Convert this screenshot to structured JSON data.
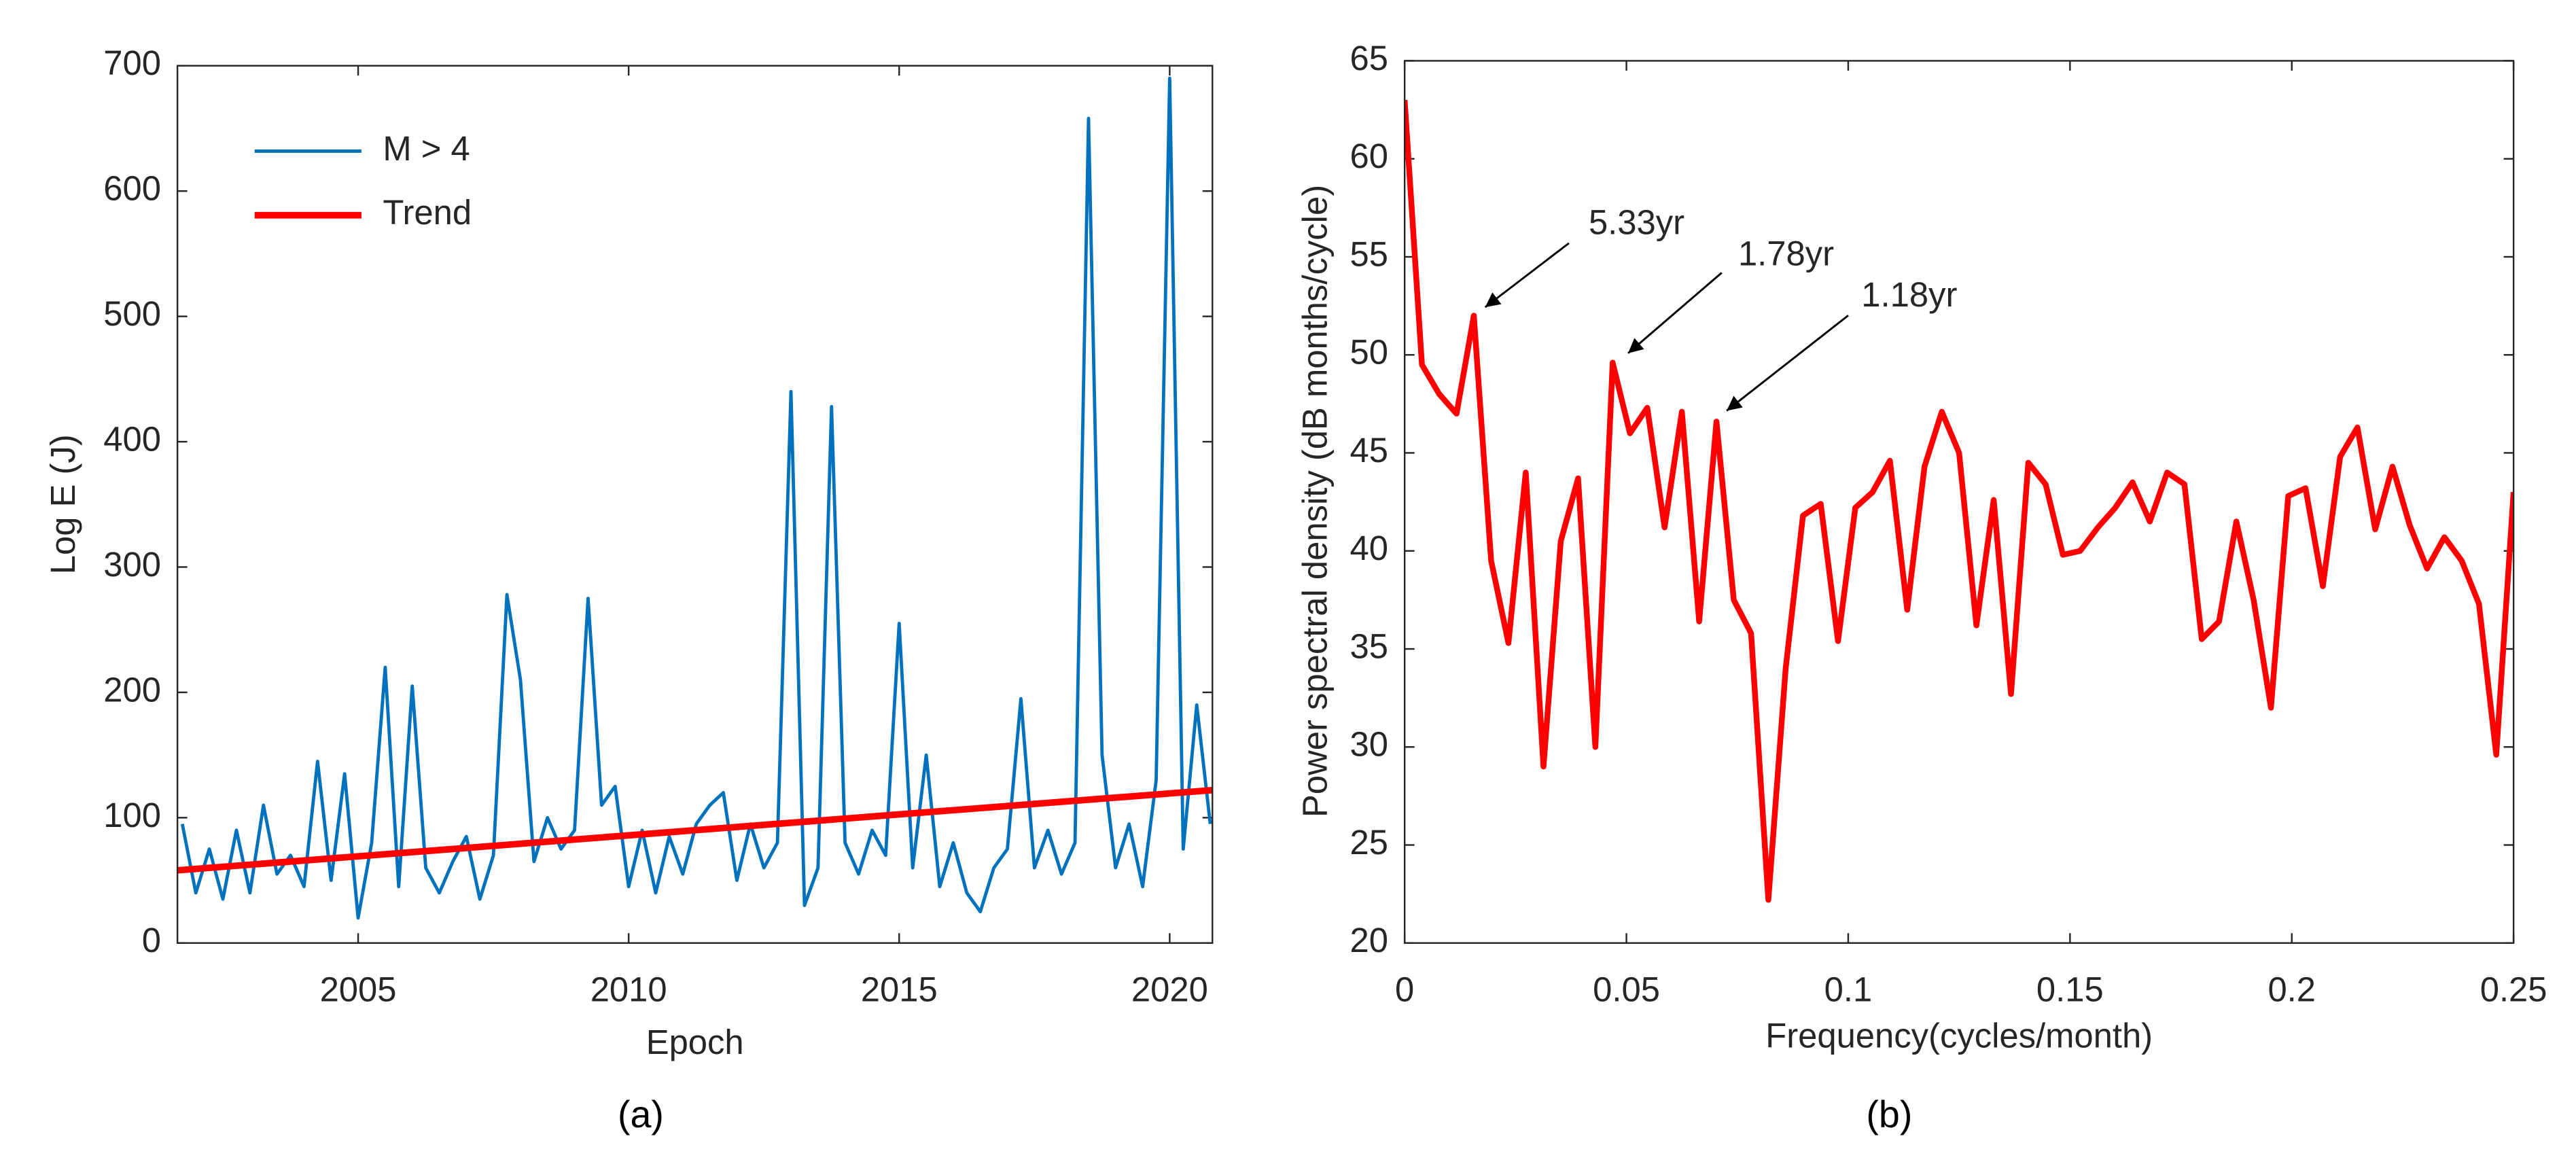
{
  "chart_data": [
    {
      "type": "line",
      "xlabel": "Epoch",
      "ylabel": "Log E (J)",
      "caption": "(a)",
      "xlim": [
        2001.66,
        2020.79
      ],
      "ylim": [
        0,
        700
      ],
      "xticks": [
        2005,
        2010,
        2015,
        2020
      ],
      "yticks": [
        0,
        100,
        200,
        300,
        400,
        500,
        600,
        700
      ],
      "legend": "upper left",
      "series": [
        {
          "name": "M > 4",
          "color": "#0072bd",
          "x": [
            2001.75,
            2002,
            2002.25,
            2002.5,
            2002.75,
            2003,
            2003.25,
            2003.5,
            2003.75,
            2004,
            2004.25,
            2004.5,
            2004.75,
            2005,
            2005.25,
            2005.5,
            2005.75,
            2006,
            2006.25,
            2006.5,
            2006.75,
            2007,
            2007.25,
            2007.5,
            2007.75,
            2008,
            2008.25,
            2008.5,
            2008.75,
            2009,
            2009.25,
            2009.5,
            2009.75,
            2010,
            2010.25,
            2010.5,
            2010.75,
            2011,
            2011.25,
            2011.5,
            2011.75,
            2012,
            2012.25,
            2012.5,
            2012.75,
            2013,
            2013.25,
            2013.5,
            2013.75,
            2014,
            2014.25,
            2014.5,
            2014.75,
            2015,
            2015.25,
            2015.5,
            2015.75,
            2016,
            2016.25,
            2016.5,
            2016.75,
            2017,
            2017.25,
            2017.5,
            2017.75,
            2018,
            2018.25,
            2018.5,
            2018.75,
            2019,
            2019.25,
            2019.5,
            2019.75,
            2020,
            2020.25,
            2020.5,
            2020.75
          ],
          "values": [
            95,
            40,
            75,
            35,
            90,
            40,
            110,
            55,
            70,
            45,
            145,
            50,
            135,
            20,
            80,
            220,
            45,
            205,
            60,
            40,
            65,
            85,
            35,
            70,
            278,
            210,
            65,
            100,
            75,
            90,
            275,
            110,
            125,
            45,
            90,
            40,
            85,
            55,
            95,
            110,
            120,
            50,
            95,
            60,
            80,
            440,
            30,
            60,
            428,
            80,
            55,
            90,
            70,
            255,
            60,
            150,
            45,
            80,
            40,
            25,
            60,
            75,
            195,
            60,
            90,
            55,
            80,
            658,
            150,
            60,
            95,
            45,
            130,
            690,
            75,
            190,
            95
          ]
        },
        {
          "name": "Trend",
          "color": "#ff0000",
          "x": [
            2001.66,
            2020.79
          ],
          "values": [
            58,
            122
          ]
        }
      ]
    },
    {
      "type": "line",
      "xlabel": "Frequency(cycles/month)",
      "ylabel": "Power spectral density (dB months/cycle)",
      "caption": "(b)",
      "xlim": [
        0,
        0.25
      ],
      "ylim": [
        20,
        65
      ],
      "xticks": [
        0,
        0.05,
        0.1,
        0.15,
        0.2,
        0.25
      ],
      "yticks": [
        20,
        25,
        30,
        35,
        40,
        45,
        50,
        55,
        60,
        65
      ],
      "annotations": [
        "5.33yr",
        "1.78yr",
        "1.18yr"
      ],
      "series": [
        {
          "color": "#ff0000",
          "x": [
            0,
            0.0039,
            0.0078,
            0.0117,
            0.0156,
            0.0195,
            0.0234,
            0.0273,
            0.0313,
            0.0352,
            0.0391,
            0.043,
            0.0469,
            0.0508,
            0.0547,
            0.0586,
            0.0625,
            0.0664,
            0.0703,
            0.0742,
            0.0781,
            0.082,
            0.0859,
            0.0898,
            0.0938,
            0.0977,
            0.1016,
            0.1055,
            0.1094,
            0.1133,
            0.1172,
            0.1211,
            0.125,
            0.1289,
            0.1328,
            0.1367,
            0.1406,
            0.1445,
            0.1484,
            0.1523,
            0.1563,
            0.1602,
            0.1641,
            0.168,
            0.1719,
            0.1758,
            0.1797,
            0.1836,
            0.1875,
            0.1914,
            0.1953,
            0.1992,
            0.2031,
            0.207,
            0.2109,
            0.2148,
            0.2188,
            0.2227,
            0.2266,
            0.2305,
            0.2344,
            0.2383,
            0.2422,
            0.2461,
            0.25
          ],
          "values": [
            63,
            49.5,
            48,
            47,
            52,
            39.5,
            35.3,
            44,
            29,
            40.5,
            43.7,
            30,
            49.6,
            46,
            47.3,
            41.2,
            47.1,
            36.4,
            46.6,
            37.5,
            35.8,
            22.2,
            34,
            41.8,
            42.4,
            35.4,
            42.2,
            43,
            44.6,
            37,
            44.3,
            47.1,
            45,
            36.2,
            42.6,
            32.7,
            44.5,
            43.4,
            39.8,
            40,
            41.2,
            42.2,
            43.5,
            41.5,
            44,
            43.4,
            35.5,
            36.4,
            41.5,
            37.5,
            32,
            42.8,
            43.2,
            38.2,
            44.8,
            46.3,
            41.1,
            44.3,
            41.3,
            39.1,
            40.7,
            39.5,
            37.3,
            29.6,
            43
          ]
        }
      ]
    }
  ]
}
